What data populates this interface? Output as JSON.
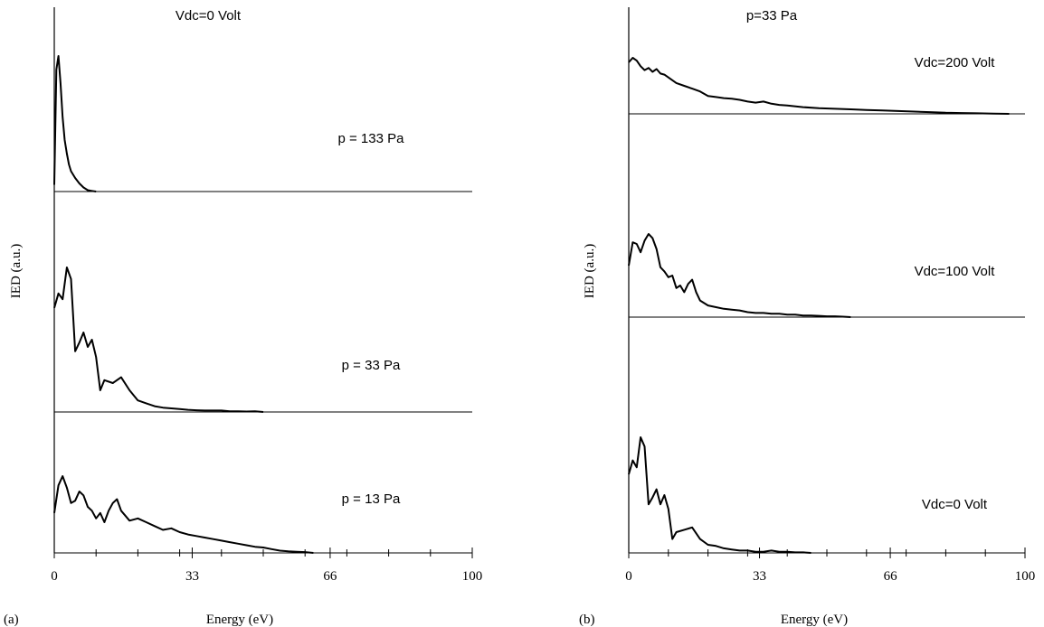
{
  "chart_data": [
    {
      "type": "line",
      "panel_label": "(a)",
      "title": "Vdc=0 Volt",
      "xlabel": "Energy (eV)",
      "ylabel": "IED (a.u.)",
      "xlim": [
        0,
        100
      ],
      "x_ticks": [
        "0",
        "33",
        "66",
        "100"
      ],
      "grid": false,
      "layout": "stacked",
      "series": [
        {
          "name": "p = 133 Pa",
          "x": [
            0,
            0.5,
            1,
            1.5,
            2,
            2.5,
            3,
            3.5,
            4,
            5,
            6,
            7,
            8,
            9,
            10
          ],
          "y": [
            0.05,
            0.9,
            1.0,
            0.8,
            0.55,
            0.38,
            0.28,
            0.2,
            0.15,
            0.1,
            0.06,
            0.03,
            0.01,
            0.005,
            0
          ]
        },
        {
          "name": "p = 33 Pa",
          "x": [
            0,
            1,
            2,
            3,
            4,
            5,
            6,
            7,
            8,
            9,
            10,
            11,
            12,
            14,
            16,
            18,
            20,
            22,
            24,
            26,
            28,
            30,
            32,
            34,
            36,
            38,
            40,
            42,
            44,
            46,
            48,
            50
          ],
          "y": [
            0.72,
            0.82,
            0.78,
            1.0,
            0.92,
            0.42,
            0.48,
            0.55,
            0.45,
            0.5,
            0.38,
            0.15,
            0.22,
            0.2,
            0.24,
            0.15,
            0.08,
            0.06,
            0.04,
            0.03,
            0.025,
            0.02,
            0.015,
            0.012,
            0.01,
            0.01,
            0.01,
            0.005,
            0.005,
            0.003,
            0.005,
            0
          ]
        },
        {
          "name": "p = 13 Pa",
          "x": [
            0,
            1,
            2,
            3,
            4,
            5,
            6,
            7,
            8,
            9,
            10,
            11,
            12,
            13,
            14,
            15,
            16,
            18,
            20,
            22,
            24,
            26,
            28,
            30,
            32,
            34,
            36,
            38,
            40,
            42,
            44,
            46,
            48,
            50,
            52,
            54,
            56,
            58,
            60,
            62
          ],
          "y": [
            0.52,
            0.88,
            1.0,
            0.85,
            0.65,
            0.68,
            0.8,
            0.75,
            0.6,
            0.55,
            0.45,
            0.52,
            0.4,
            0.55,
            0.65,
            0.7,
            0.55,
            0.42,
            0.45,
            0.4,
            0.35,
            0.3,
            0.32,
            0.27,
            0.24,
            0.22,
            0.2,
            0.18,
            0.16,
            0.14,
            0.12,
            0.1,
            0.08,
            0.07,
            0.05,
            0.03,
            0.02,
            0.015,
            0.01,
            0
          ]
        }
      ]
    },
    {
      "type": "line",
      "panel_label": "(b)",
      "title": "p=33 Pa",
      "xlabel": "Energy (eV)",
      "ylabel": "IED (a.u.)",
      "xlim": [
        0,
        100
      ],
      "x_ticks": [
        "0",
        "33",
        "66",
        "100"
      ],
      "grid": false,
      "layout": "stacked",
      "series": [
        {
          "name": "Vdc=200 Volt",
          "x": [
            0,
            1,
            2,
            3,
            4,
            5,
            6,
            7,
            8,
            9,
            10,
            12,
            14,
            16,
            18,
            20,
            22,
            24,
            26,
            28,
            30,
            32,
            34,
            36,
            38,
            40,
            44,
            48,
            52,
            56,
            60,
            64,
            68,
            72,
            76,
            80,
            84,
            88,
            92,
            96
          ],
          "y": [
            0.92,
            1.0,
            0.95,
            0.85,
            0.78,
            0.82,
            0.75,
            0.8,
            0.72,
            0.7,
            0.65,
            0.55,
            0.5,
            0.45,
            0.4,
            0.32,
            0.3,
            0.28,
            0.27,
            0.25,
            0.22,
            0.2,
            0.22,
            0.18,
            0.16,
            0.15,
            0.12,
            0.1,
            0.09,
            0.08,
            0.07,
            0.06,
            0.05,
            0.04,
            0.03,
            0.02,
            0.015,
            0.01,
            0.005,
            0
          ]
        },
        {
          "name": "Vdc=100 Volt",
          "x": [
            0,
            1,
            2,
            3,
            4,
            5,
            6,
            7,
            8,
            9,
            10,
            11,
            12,
            13,
            14,
            15,
            16,
            17,
            18,
            20,
            22,
            24,
            26,
            28,
            30,
            32,
            34,
            36,
            38,
            40,
            42,
            44,
            46,
            48,
            50,
            52,
            54,
            56
          ],
          "y": [
            0.62,
            0.9,
            0.88,
            0.78,
            0.92,
            1.0,
            0.95,
            0.82,
            0.6,
            0.55,
            0.48,
            0.5,
            0.35,
            0.38,
            0.3,
            0.4,
            0.45,
            0.3,
            0.2,
            0.14,
            0.12,
            0.1,
            0.09,
            0.08,
            0.06,
            0.05,
            0.05,
            0.04,
            0.04,
            0.03,
            0.03,
            0.02,
            0.02,
            0.015,
            0.01,
            0.01,
            0.005,
            0
          ]
        },
        {
          "name": "Vdc=0 Volt",
          "x": [
            0,
            1,
            2,
            3,
            4,
            5,
            6,
            7,
            8,
            9,
            10,
            11,
            12,
            14,
            16,
            18,
            20,
            22,
            24,
            26,
            28,
            30,
            32,
            34,
            36,
            38,
            40,
            42,
            44,
            46
          ],
          "y": [
            0.68,
            0.8,
            0.74,
            1.0,
            0.92,
            0.42,
            0.48,
            0.55,
            0.42,
            0.5,
            0.38,
            0.12,
            0.18,
            0.2,
            0.22,
            0.12,
            0.07,
            0.06,
            0.04,
            0.03,
            0.02,
            0.02,
            0.01,
            0.01,
            0.02,
            0.01,
            0.01,
            0.005,
            0.005,
            0
          ]
        }
      ]
    }
  ]
}
